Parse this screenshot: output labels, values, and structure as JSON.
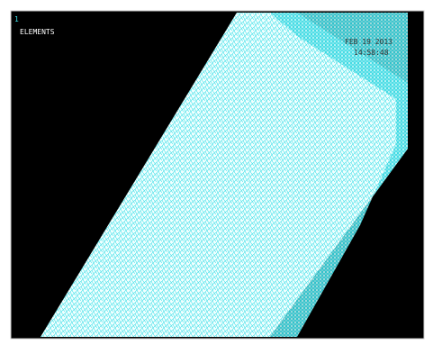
{
  "window": {
    "number": "1",
    "label": "ELEMENTS",
    "date": "FEB 19 2013",
    "time": "14:58:48"
  }
}
